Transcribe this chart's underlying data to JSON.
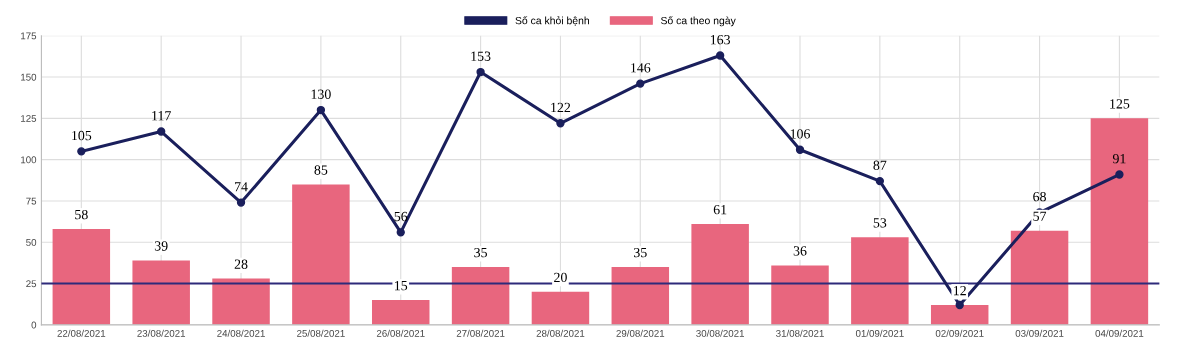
{
  "chart_data": {
    "type": "bar",
    "categories": [
      "22/08/2021",
      "23/08/2021",
      "24/08/2021",
      "25/08/2021",
      "26/08/2021",
      "27/08/2021",
      "28/08/2021",
      "29/08/2021",
      "30/08/2021",
      "31/08/2021",
      "01/09/2021",
      "02/09/2021",
      "03/09/2021",
      "04/09/2021"
    ],
    "series": [
      {
        "name": "Số ca khỏi bệnh",
        "type": "line",
        "color": "#1a1f5c",
        "values": [
          105,
          117,
          74,
          130,
          56,
          153,
          122,
          146,
          163,
          106,
          87,
          12,
          68,
          91
        ],
        "value_labels": [
          "105",
          "117",
          "74",
          "130",
          "56",
          "153",
          "122",
          "146",
          "163",
          "106",
          "87",
          null,
          "68",
          "91"
        ]
      },
      {
        "name": "Số ca theo ngày",
        "type": "bar",
        "color": "#e8667e",
        "values": [
          58,
          39,
          28,
          85,
          15,
          35,
          20,
          35,
          61,
          36,
          53,
          12,
          57,
          125
        ]
      }
    ],
    "ylim": [
      0,
      175
    ],
    "yticks": [
      0,
      25,
      50,
      75,
      100,
      125,
      150,
      175
    ],
    "ref_lines": [
      {
        "axis": "y",
        "value": 25,
        "color": "#2e2a7a"
      }
    ],
    "data_labels": true,
    "grid": true,
    "legend": "top",
    "marker": "circle"
  }
}
